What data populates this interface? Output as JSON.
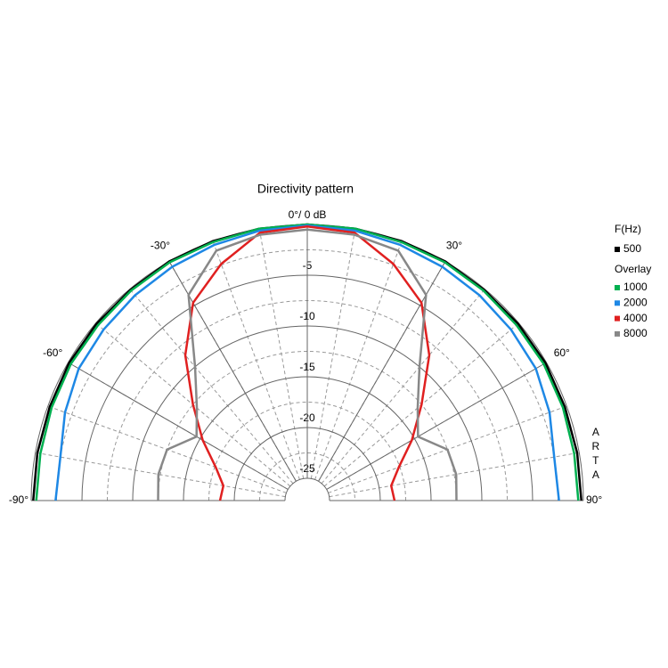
{
  "chart_data": {
    "type": "polar",
    "title": "Directivity pattern",
    "rlim": [
      -25,
      0
    ],
    "rticks": [
      {
        "value": 0,
        "label": "0°/ 0 dB"
      },
      -5,
      -10,
      -15,
      -20,
      -25
    ],
    "thetalim": [
      -90,
      90
    ],
    "thetaticks": [
      {
        "value": -90,
        "label": "-90°"
      },
      {
        "value": -60,
        "label": "-60°"
      },
      {
        "value": -30,
        "label": "-30°"
      },
      {
        "value": 30,
        "label": "30°"
      },
      {
        "value": 60,
        "label": "60°"
      },
      {
        "value": 90,
        "label": "90°"
      }
    ],
    "theta": [
      -90,
      -80,
      -70,
      -60,
      -50,
      -40,
      -30,
      -20,
      -10,
      0,
      10,
      20,
      30,
      40,
      50,
      60,
      70,
      80,
      90
    ],
    "legend_title": "F(Hz)",
    "overlay_title": "Overlay",
    "watermark": "ARTA",
    "series": [
      {
        "name": "500",
        "color": "#000000",
        "values": [
          -0.2,
          -0.2,
          -0.2,
          -0.1,
          -0.1,
          -0.1,
          0,
          0,
          0,
          0,
          0,
          0,
          0,
          -0.1,
          -0.1,
          -0.1,
          -0.2,
          -0.2,
          -0.2
        ]
      },
      {
        "name": "1000",
        "color": "#00b050",
        "values": [
          -0.5,
          -0.5,
          -0.4,
          -0.3,
          -0.3,
          -0.2,
          -0.1,
          -0.1,
          0,
          0,
          0,
          -0.1,
          -0.1,
          -0.2,
          -0.3,
          -0.3,
          -0.4,
          -0.5,
          -0.5
        ]
      },
      {
        "name": "2000",
        "color": "#1e88e5",
        "values": [
          -2.4,
          -2.5,
          -1.8,
          -1.2,
          -1.0,
          -0.8,
          -0.6,
          -0.4,
          -0.2,
          -0.1,
          -0.2,
          -0.4,
          -0.6,
          -0.8,
          -1.0,
          -1.2,
          -1.8,
          -2.5,
          -2.4
        ]
      },
      {
        "name": "4000",
        "color": "#e02020",
        "values": [
          -18.6,
          -18.8,
          -17.6,
          -15.3,
          -12.5,
          -8.5,
          -4.7,
          -2.4,
          -0.4,
          -0.2,
          -0.4,
          -2.4,
          -4.7,
          -8.5,
          -12.5,
          -15.3,
          -17.6,
          -18.8,
          -18.6
        ]
      },
      {
        "name": "8000",
        "color": "#888888",
        "values": [
          -12.5,
          -12.3,
          -12.5,
          -14.6,
          -13.0,
          -10.0,
          -3.8,
          -1.0,
          -0.6,
          -0.5,
          -0.6,
          -1.0,
          -3.8,
          -10.0,
          -13.0,
          -14.6,
          -12.5,
          -12.3,
          -12.5
        ]
      }
    ]
  }
}
